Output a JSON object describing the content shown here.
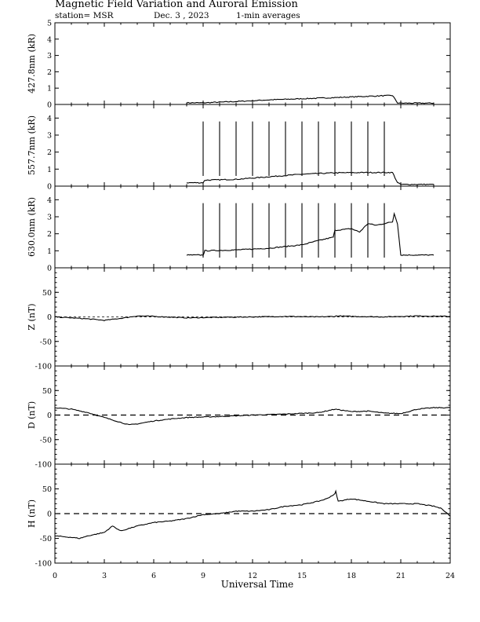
{
  "header": {
    "title": "Magnetic Field Variation and Auroral Emission",
    "station": "station= MSR",
    "date": "Dec. 3 , 2023",
    "averaging": "1-min averages"
  },
  "colors": {
    "line": "#000000",
    "background": "#ffffff"
  },
  "chart_data": [
    {
      "type": "line",
      "ylabel": "427.8nm (kR)",
      "ylim": [
        0,
        5
      ],
      "yticks": [
        0,
        1,
        2,
        3,
        4,
        5
      ],
      "series": [
        {
          "x": [
            8.0,
            9.0,
            11.0,
            13.0,
            15.0,
            17.0,
            19.0,
            20.5,
            20.8,
            21.0,
            23.0
          ],
          "values": [
            0.1,
            0.1,
            0.18,
            0.28,
            0.35,
            0.42,
            0.5,
            0.55,
            0.1,
            0.08,
            0.08
          ]
        }
      ],
      "spikes_x": [],
      "spike_top": 0
    },
    {
      "type": "line",
      "ylabel": "557.7nm (kR)",
      "ylim": [
        0,
        4.8
      ],
      "yticks": [
        0,
        1,
        2,
        3,
        4
      ],
      "series": [
        {
          "x": [
            8.0,
            9.0,
            9.1,
            11.0,
            13.0,
            15.0,
            17.0,
            19.0,
            20.5,
            20.8,
            21.0,
            23.0
          ],
          "values": [
            0.2,
            0.2,
            0.35,
            0.4,
            0.55,
            0.7,
            0.78,
            0.8,
            0.8,
            0.2,
            0.1,
            0.1
          ]
        }
      ],
      "spikes_x": [
        9,
        10,
        11,
        12,
        13,
        14,
        15,
        16,
        17,
        18,
        19,
        20
      ],
      "spike_top": 3.8
    },
    {
      "type": "line",
      "ylabel": "630.0nm (kR)",
      "ylim": [
        0,
        4.8
      ],
      "yticks": [
        0,
        1,
        2,
        3,
        4
      ],
      "series": [
        {
          "x": [
            8.0,
            9.0,
            9.1,
            11.0,
            13.0,
            15.0,
            16.0,
            16.9,
            17.0,
            18.0,
            18.5,
            19.0,
            19.5,
            20.5,
            20.6,
            20.8,
            21.0,
            23.0
          ],
          "values": [
            0.75,
            0.75,
            1.0,
            1.05,
            1.15,
            1.35,
            1.6,
            1.8,
            2.2,
            2.3,
            2.1,
            2.6,
            2.5,
            2.7,
            3.2,
            2.6,
            0.75,
            0.75
          ]
        }
      ],
      "spikes_x": [
        9,
        10,
        11,
        12,
        13,
        14,
        15,
        16,
        17,
        18,
        19,
        20
      ],
      "spike_top": 3.8
    },
    {
      "type": "line",
      "ylabel": "Z (nT)",
      "ylim": [
        -100,
        100
      ],
      "yticks": [
        -100,
        -50,
        0,
        50
      ],
      "series": [
        {
          "x": [
            0,
            1,
            2,
            3,
            4,
            5,
            6,
            8,
            10,
            12,
            14,
            16,
            17,
            17.1,
            18,
            20,
            22,
            24
          ],
          "values": [
            0,
            -2,
            -4,
            -7,
            -3,
            2,
            1,
            -2,
            -1,
            0,
            1,
            0,
            1,
            2,
            1,
            0,
            2,
            1
          ]
        }
      ],
      "spikes_x": [],
      "spike_top": 0
    },
    {
      "type": "line",
      "ylabel": "D (nT)",
      "ylim": [
        -100,
        100
      ],
      "yticks": [
        -100,
        -50,
        0,
        50
      ],
      "series": [
        {
          "x": [
            0,
            1,
            2,
            3,
            4,
            4.5,
            5,
            6,
            7,
            8,
            10,
            12,
            14,
            16,
            17,
            18,
            19,
            20,
            21,
            22,
            23,
            24
          ],
          "values": [
            15,
            12,
            5,
            -5,
            -15,
            -20,
            -18,
            -12,
            -8,
            -5,
            -3,
            0,
            2,
            5,
            12,
            7,
            8,
            4,
            3,
            12,
            15,
            15
          ]
        }
      ],
      "spikes_x": [],
      "spike_top": 0
    },
    {
      "type": "line",
      "ylabel": "H (nT)",
      "ylim": [
        -100,
        100
      ],
      "yticks": [
        -100,
        -50,
        0,
        50
      ],
      "series": [
        {
          "x": [
            0,
            1,
            1.5,
            2,
            3,
            3.5,
            4,
            4.5,
            5,
            6,
            7,
            8,
            9,
            10,
            11,
            12,
            13,
            14,
            15,
            16,
            16.5,
            17,
            17.05,
            17.2,
            18,
            19,
            20,
            21,
            22,
            23,
            23.5,
            24
          ],
          "values": [
            -45,
            -48,
            -50,
            -45,
            -38,
            -25,
            -35,
            -30,
            -25,
            -18,
            -15,
            -10,
            -2,
            0,
            5,
            5,
            8,
            15,
            18,
            25,
            30,
            40,
            45,
            25,
            30,
            25,
            20,
            20,
            20,
            15,
            10,
            -5
          ]
        }
      ],
      "spikes_x": [],
      "spike_top": 0
    }
  ],
  "xaxis": {
    "label": "Universal Time",
    "xlim": [
      0,
      24
    ],
    "ticks": [
      0,
      3,
      6,
      9,
      12,
      15,
      18,
      21,
      24
    ]
  }
}
